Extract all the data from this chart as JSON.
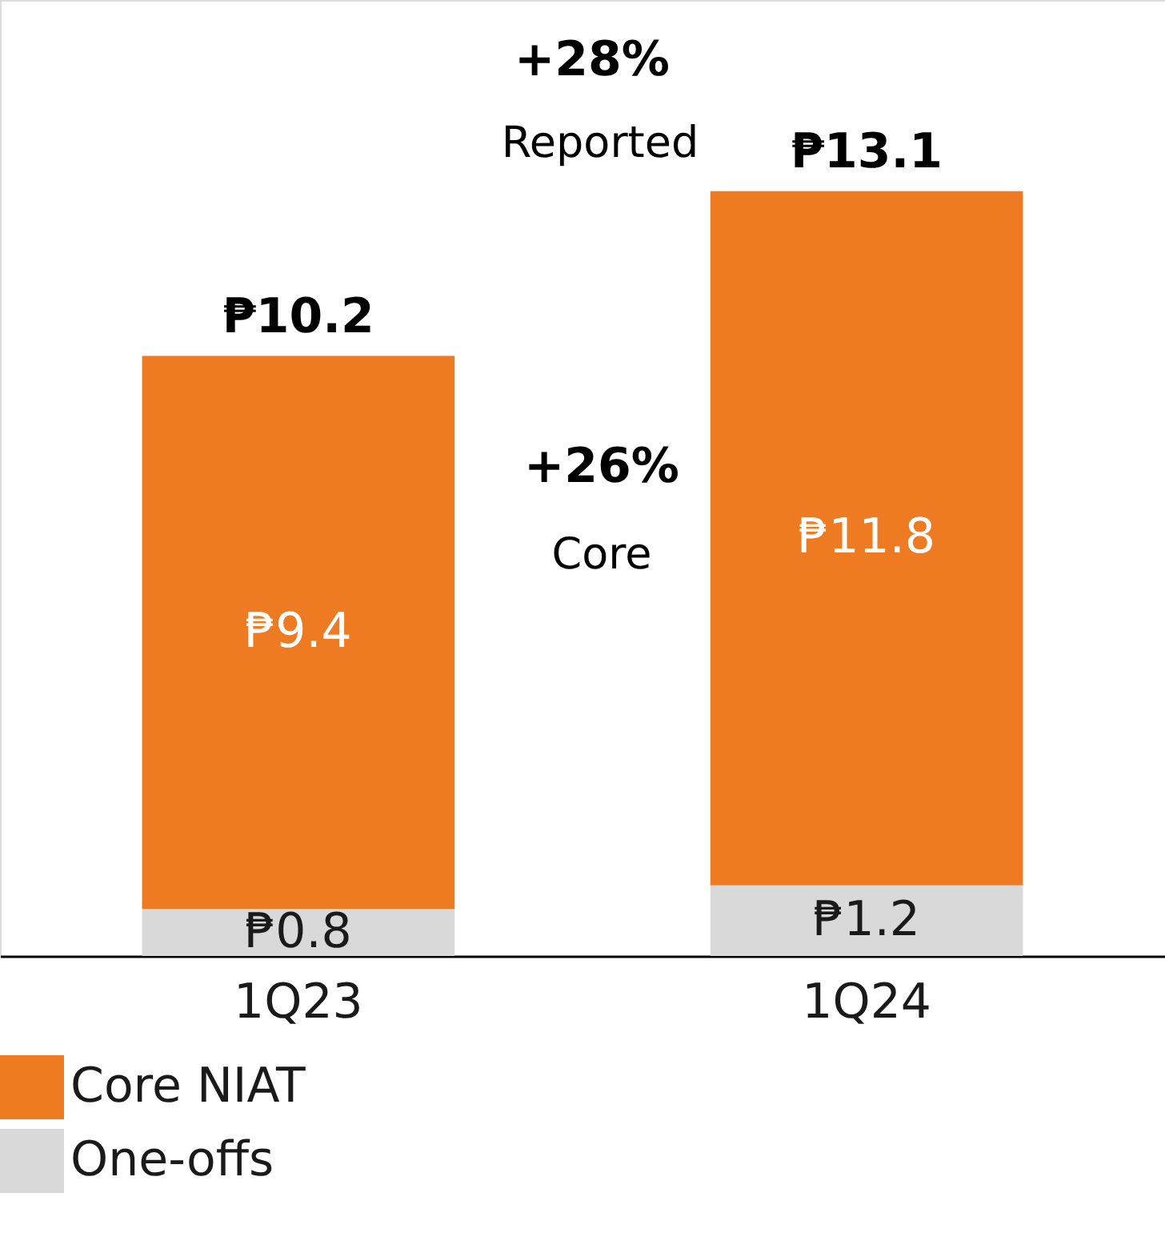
{
  "chart_data": {
    "type": "bar",
    "stacked": true,
    "categories": [
      "1Q23",
      "1Q24"
    ],
    "series": [
      {
        "name": "One-offs",
        "color": "#d9d9d9",
        "values": [
          0.8,
          1.2
        ],
        "value_labels": [
          "₱0.8",
          "₱1.2"
        ]
      },
      {
        "name": "Core NIAT",
        "color": "#ee7b22",
        "values": [
          9.4,
          11.8
        ],
        "value_labels": [
          "₱9.4",
          "₱11.8"
        ]
      }
    ],
    "totals": [
      "₱10.2",
      "₱13.1"
    ],
    "annotations": [
      "+28%",
      "Reported",
      "+26%",
      "Core"
    ],
    "tick_labels": "x",
    "legend": "bottom",
    "grid": false
  }
}
